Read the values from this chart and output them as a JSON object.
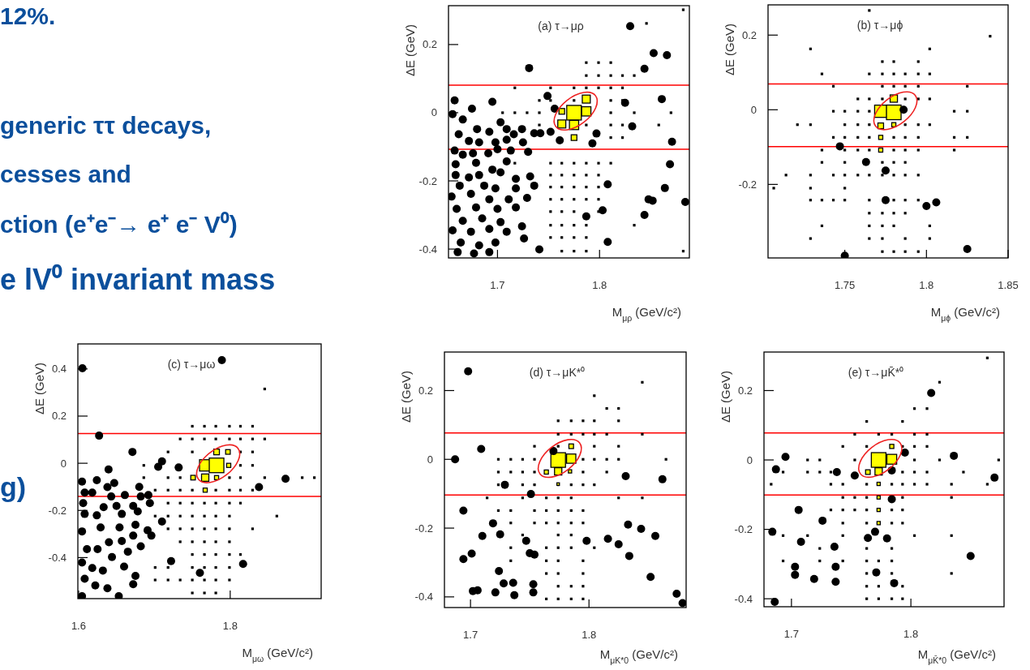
{
  "chart_data": [
    {
      "type": "other",
      "annotations": [
        "12%.",
        "generic ττ decays,",
        "cesses and",
        "ction (e⁺e⁻→ e⁺ e⁻ V⁰)",
        "e lV⁰ invariant mass",
        "g)"
      ]
    },
    {
      "type": "scatter",
      "title": "(a) τ→μρ",
      "xlabel": "M$_{μρ}$ (GeV/c²)",
      "ylabel": "ΔE (GeV)",
      "xlim": [
        1.652,
        1.888
      ],
      "ylim": [
        -0.426,
        0.314
      ],
      "xticks": [
        1.7,
        1.8
      ],
      "yticks": [
        -0.4,
        -0.2,
        0,
        0.2
      ],
      "ref_lines": [
        {
          "axis": "y",
          "value": 0.081,
          "color": "#ff0000"
        },
        {
          "axis": "y",
          "value": -0.107,
          "color": "#ff0000"
        }
      ],
      "series": [
        {
          "type": "scatter",
          "marker": "square",
          "color": "#000000",
          "x": [
            1.787,
            1.799,
            1.811,
            1.787,
            1.799,
            1.811,
            1.8225,
            1.834,
            1.717,
            1.752,
            1.775,
            1.787,
            1.799,
            1.811,
            1.8225,
            1.741,
            1.752,
            1.775,
            1.811,
            1.8225,
            1.705,
            1.717,
            1.729,
            1.741,
            1.811,
            1.834,
            1.87,
            1.741,
            1.787,
            1.811,
            1.8225,
            1.858,
            1.811,
            1.8225,
            1.717,
            1.752,
            1.763,
            1.775,
            1.787,
            1.799,
            1.811,
            1.752,
            1.763,
            1.775,
            1.787,
            1.799,
            1.752,
            1.763,
            1.775,
            1.787,
            1.799,
            1.752,
            1.763,
            1.775,
            1.787,
            1.799,
            1.752,
            1.763,
            1.775,
            1.799,
            1.752,
            1.763,
            1.775,
            1.787,
            1.834,
            1.752,
            1.763,
            1.775,
            1.787,
            1.763,
            1.775,
            1.787,
            1.882,
            1.882,
            1.846
          ],
          "values": [
            0.147,
            0.147,
            0.147,
            0.109,
            0.109,
            0.109,
            0.109,
            0.109,
            0.073,
            0.073,
            0.073,
            0.073,
            0.073,
            0.073,
            0.073,
            0.036,
            0.036,
            0.036,
            0.036,
            0.036,
            0,
            0,
            0,
            0,
            0,
            0,
            0,
            -0.036,
            -0.036,
            -0.036,
            -0.036,
            -0.036,
            -0.073,
            -0.073,
            -0.148,
            -0.148,
            -0.148,
            -0.148,
            -0.148,
            -0.148,
            -0.148,
            -0.183,
            -0.183,
            -0.183,
            -0.183,
            -0.183,
            -0.218,
            -0.218,
            -0.218,
            -0.218,
            -0.218,
            -0.254,
            -0.254,
            -0.254,
            -0.254,
            -0.254,
            -0.29,
            -0.29,
            -0.29,
            -0.29,
            -0.33,
            -0.33,
            -0.33,
            -0.33,
            -0.33,
            -0.366,
            -0.366,
            -0.366,
            -0.366,
            -0.406,
            -0.406,
            -0.406,
            -0.406,
            0.302,
            0.262
          ]
        },
        {
          "type": "bubble",
          "marker": "square",
          "color": "#ffff00",
          "x": [
            1.775,
            1.787,
            1.787,
            1.763,
            1.775,
            1.775,
            1.763
          ],
          "values": [
            0,
            0.04,
            0.004,
            -0.033,
            -0.036,
            -0.073,
            0.004
          ],
          "sizes": [
            1,
            0.3,
            0.4,
            0.3,
            0.4,
            0.15,
            0.15
          ]
        },
        {
          "type": "scatter",
          "marker": "circle",
          "color": "#000000",
          "x": [
            1.83,
            1.731,
            1.853,
            1.866,
            1.844,
            1.749,
            1.861,
            1.825,
            1.832,
            1.871,
            1.869,
            1.808,
            1.864,
            1.848,
            1.852,
            1.884,
            1.844,
            1.803,
            1.787,
            1.808,
            1.741,
            1.726,
            1.724,
            1.756,
            1.761,
            1.797,
            1.793,
            1.752,
            1.742,
            1.658,
            1.656,
            1.695,
            1.675,
            1.666,
            1.68,
            1.692,
            1.703,
            1.709,
            1.724,
            1.716,
            1.736,
            1.662,
            1.672,
            1.682,
            1.698,
            1.709,
            1.725,
            1.658,
            1.666,
            1.676,
            1.691,
            1.7,
            1.713,
            1.73,
            1.659,
            1.679,
            1.695,
            1.709,
            1.659,
            1.672,
            1.682,
            1.703,
            1.718,
            1.732,
            1.663,
            1.687,
            1.698,
            1.718,
            1.736,
            1.655,
            1.674,
            1.692,
            1.711,
            1.729,
            1.66,
            1.679,
            1.7,
            1.718,
            1.666,
            1.685,
            1.703,
            1.656,
            1.674,
            1.692,
            1.709,
            1.664,
            1.682,
            1.698,
            1.661,
            1.677,
            1.692
          ],
          "values": [
            0.254,
            0.131,
            0.175,
            0.169,
            0.129,
            0.049,
            0.04,
            0.029,
            -0.04,
            -0.085,
            -0.151,
            -0.21,
            -0.221,
            -0.254,
            -0.258,
            -0.262,
            -0.3,
            -0.286,
            -0.304,
            -0.379,
            -0.401,
            -0.369,
            -0.333,
            0.012,
            -0.081,
            -0.061,
            -0.09,
            -0.056,
            -0.06,
            0.036,
            -0.004,
            0.032,
            0.012,
            -0.02,
            -0.048,
            -0.056,
            -0.028,
            -0.048,
            -0.048,
            -0.063,
            -0.06,
            -0.063,
            -0.083,
            -0.087,
            -0.087,
            -0.079,
            -0.087,
            -0.111,
            -0.123,
            -0.119,
            -0.119,
            -0.107,
            -0.111,
            -0.115,
            -0.151,
            -0.147,
            -0.167,
            -0.143,
            -0.183,
            -0.19,
            -0.183,
            -0.175,
            -0.194,
            -0.187,
            -0.214,
            -0.214,
            -0.222,
            -0.222,
            -0.214,
            -0.246,
            -0.238,
            -0.254,
            -0.254,
            -0.25,
            -0.282,
            -0.278,
            -0.282,
            -0.278,
            -0.317,
            -0.31,
            -0.321,
            -0.345,
            -0.349,
            -0.341,
            -0.349,
            -0.381,
            -0.389,
            -0.381,
            -0.409,
            -0.413,
            -0.409
          ]
        }
      ]
    },
    {
      "type": "scatter",
      "title": "(b) τ→μϕ",
      "xlabel": "M$_{μϕ}$ (GeV/c²)",
      "ylabel": "ΔE (GeV)",
      "xlim": [
        1.703,
        1.85
      ],
      "ylim": [
        -0.397,
        0.281
      ],
      "xticks": [
        1.75,
        1.8,
        1.85
      ],
      "yticks": [
        -0.2,
        0,
        0.2
      ],
      "ref_lines": [
        {
          "axis": "y",
          "value": 0.069,
          "color": "#ff0000"
        },
        {
          "axis": "y",
          "value": -0.099,
          "color": "#ff0000"
        }
      ],
      "series": [
        {
          "type": "scatter",
          "marker": "square",
          "color": "#000000",
          "x": [
            1.729,
            1.802,
            1.773,
            1.78,
            1.795,
            1.736,
            1.765,
            1.773,
            1.78,
            1.787,
            1.795,
            1.802,
            1.743,
            1.773,
            1.78,
            1.787,
            1.795,
            1.825,
            1.758,
            1.765,
            1.773,
            1.787,
            1.795,
            1.802,
            1.743,
            1.75,
            1.758,
            1.765,
            1.817,
            1.825,
            1.721,
            1.729,
            1.75,
            1.758,
            1.765,
            1.787,
            1.795,
            1.802,
            1.743,
            1.75,
            1.758,
            1.765,
            1.78,
            1.787,
            1.795,
            1.817,
            1.825,
            1.736,
            1.75,
            1.758,
            1.765,
            1.78,
            1.787,
            1.795,
            1.817,
            1.736,
            1.75,
            1.773,
            1.78,
            1.787,
            1.714,
            1.729,
            1.743,
            1.75,
            1.758,
            1.765,
            1.773,
            1.78,
            1.787,
            1.795,
            1.729,
            1.75,
            1.729,
            1.736,
            1.743,
            1.75,
            1.765,
            1.78,
            1.787,
            1.795,
            1.765,
            1.773,
            1.78,
            1.787,
            1.736,
            1.765,
            1.773,
            1.78,
            1.802,
            1.729,
            1.765,
            1.773,
            1.787,
            1.802,
            1.773,
            1.78,
            1.787,
            1.795,
            1.765,
            1.839,
            1.7065
          ],
          "values": [
            0.163,
            0.163,
            0.129,
            0.129,
            0.129,
            0.096,
            0.096,
            0.096,
            0.096,
            0.096,
            0.096,
            0.096,
            0.063,
            0.063,
            0.063,
            0.063,
            0.063,
            0.063,
            0.029,
            0.029,
            0.029,
            0.029,
            0.029,
            0.029,
            -0.004,
            -0.004,
            -0.004,
            -0.004,
            -0.004,
            -0.004,
            -0.04,
            -0.04,
            -0.04,
            -0.04,
            -0.04,
            -0.04,
            -0.04,
            -0.04,
            -0.074,
            -0.074,
            -0.074,
            -0.074,
            -0.074,
            -0.074,
            -0.074,
            -0.074,
            -0.074,
            -0.108,
            -0.108,
            -0.108,
            -0.108,
            -0.108,
            -0.108,
            -0.108,
            -0.108,
            -0.141,
            -0.141,
            -0.141,
            -0.141,
            -0.141,
            -0.175,
            -0.175,
            -0.175,
            -0.175,
            -0.175,
            -0.175,
            -0.175,
            -0.175,
            -0.175,
            -0.175,
            -0.21,
            -0.21,
            -0.242,
            -0.242,
            -0.242,
            -0.242,
            -0.242,
            -0.242,
            -0.242,
            -0.242,
            -0.277,
            -0.277,
            -0.277,
            -0.277,
            -0.311,
            -0.311,
            -0.311,
            -0.311,
            -0.311,
            -0.345,
            -0.345,
            -0.345,
            -0.345,
            -0.345,
            -0.38,
            -0.38,
            -0.38,
            -0.38,
            0.266,
            0.197,
            -0.21
          ]
        },
        {
          "type": "bubble",
          "marker": "square",
          "color": "#ffff00",
          "x": [
            1.772,
            1.78,
            1.78,
            1.772,
            1.78,
            1.772,
            1.772
          ],
          "values": [
            -0.004,
            -0.007,
            0.03,
            -0.043,
            -0.04,
            -0.074,
            -0.108
          ],
          "sizes": [
            0.7,
            1,
            0.25,
            0.15,
            0.08,
            0.08,
            0.08
          ]
        },
        {
          "type": "scatter",
          "marker": "circle",
          "color": "#000000",
          "x": [
            1.747,
            1.763,
            1.775,
            1.775,
            1.8,
            1.806,
            1.825,
            1.786,
            1.75
          ],
          "values": [
            -0.098,
            -0.14,
            -0.163,
            -0.242,
            -0.258,
            -0.248,
            -0.373,
            0,
            -0.391
          ]
        }
      ]
    },
    {
      "type": "scatter",
      "title": "(c) τ→μω",
      "xlabel": "M$_{μω}$ (GeV/c²)",
      "ylabel": "ΔE (GeV)",
      "xlim": [
        1.599,
        1.92
      ],
      "ylim": [
        -0.574,
        0.506
      ],
      "xticks": [
        1.6,
        1.8
      ],
      "yticks": [
        -0.4,
        -0.2,
        0,
        0.2,
        0.4
      ],
      "ref_lines": [
        {
          "axis": "y",
          "value": 0.126,
          "color": "#ff0000"
        },
        {
          "axis": "y",
          "value": -0.141,
          "color": "#ff0000"
        }
      ],
      "series": [
        {
          "type": "scatter",
          "marker": "square",
          "color": "#000000",
          "x": [
            1.8455,
            1.75,
            1.766,
            1.781,
            1.799,
            1.8135,
            1.8295,
            1.734,
            1.75,
            1.766,
            1.781,
            1.799,
            1.8135,
            1.8295,
            1.8455,
            1.718,
            1.75,
            1.8135,
            1.8295,
            1.686,
            1.8135,
            1.8295,
            1.686,
            1.718,
            1.734,
            1.799,
            1.8135,
            1.8455,
            1.895,
            1.911,
            1.701,
            1.718,
            1.734,
            1.75,
            1.781,
            1.799,
            1.8135,
            1.8295,
            1.718,
            1.734,
            1.75,
            1.766,
            1.781,
            1.799,
            1.8135,
            1.701,
            1.718,
            1.734,
            1.75,
            1.766,
            1.781,
            1.799,
            1.8615,
            1.718,
            1.734,
            1.75,
            1.766,
            1.781,
            1.799,
            1.8295,
            1.734,
            1.75,
            1.766,
            1.781,
            1.799,
            1.75,
            1.766,
            1.781,
            1.799,
            1.8135,
            1.701,
            1.718,
            1.75,
            1.766,
            1.781,
            1.799,
            1.701,
            1.718,
            1.734,
            1.75,
            1.766,
            1.781,
            1.799,
            1.75,
            1.766,
            1.781
          ],
          "values": [
            0.315,
            0.157,
            0.157,
            0.157,
            0.157,
            0.157,
            0.157,
            0.103,
            0.103,
            0.103,
            0.103,
            0.103,
            0.103,
            0.103,
            0.103,
            0.048,
            0.048,
            0.048,
            0.048,
            -0.009,
            -0.009,
            -0.009,
            -0.061,
            -0.061,
            -0.061,
            -0.061,
            -0.061,
            -0.061,
            -0.061,
            -0.061,
            -0.114,
            -0.114,
            -0.114,
            -0.114,
            -0.114,
            -0.114,
            -0.114,
            -0.114,
            -0.169,
            -0.169,
            -0.169,
            -0.169,
            -0.169,
            -0.169,
            -0.169,
            -0.224,
            -0.224,
            -0.224,
            -0.224,
            -0.224,
            -0.224,
            -0.224,
            -0.224,
            -0.278,
            -0.278,
            -0.278,
            -0.278,
            -0.278,
            -0.278,
            -0.278,
            -0.333,
            -0.333,
            -0.333,
            -0.333,
            -0.333,
            -0.387,
            -0.387,
            -0.387,
            -0.387,
            -0.387,
            -0.442,
            -0.442,
            -0.442,
            -0.442,
            -0.442,
            -0.442,
            -0.495,
            -0.495,
            -0.495,
            -0.495,
            -0.495,
            -0.495,
            -0.495,
            -0.55,
            -0.55,
            -0.55
          ]
        },
        {
          "type": "bubble",
          "marker": "square",
          "color": "#ffff00",
          "x": [
            1.767,
            1.782,
            1.782,
            1.797,
            1.798,
            1.767,
            1.751,
            1.782,
            1.767
          ],
          "values": [
            -0.009,
            -0.009,
            0.048,
            0.048,
            -0.009,
            -0.061,
            -0.061,
            -0.061,
            -0.114
          ],
          "sizes": [
            0.6,
            1,
            0.15,
            0.1,
            0.08,
            0.25,
            0.1,
            0.08,
            0.08
          ]
        },
        {
          "type": "scatter",
          "marker": "circle",
          "color": "#000000",
          "x": [
            1.605,
            1.789,
            1.627,
            1.671,
            1.71,
            1.705,
            1.732,
            1.838,
            1.873,
            1.71,
            1.722,
            1.76,
            1.817,
            1.68,
            1.6045,
            1.624,
            1.6395,
            1.647,
            1.638,
            1.608,
            1.618,
            1.643,
            1.661,
            1.682,
            1.692,
            1.606,
            1.633,
            1.65,
            1.672,
            1.694,
            1.608,
            1.624,
            1.657,
            1.678,
            1.629,
            1.654,
            1.675,
            1.691,
            1.6045,
            1.64,
            1.657,
            1.672,
            1.696,
            1.611,
            1.625,
            1.665,
            1.682,
            1.644,
            1.6045,
            1.618,
            1.632,
            1.66,
            1.675,
            1.608,
            1.622,
            1.638,
            1.653,
            1.6045,
            1.672
          ],
          "values": [
            0.403,
            0.437,
            0.117,
            0.048,
            0.008,
            -0.015,
            -0.018,
            -0.101,
            -0.066,
            -0.247,
            -0.415,
            -0.465,
            -0.427,
            -0.1,
            -0.078,
            -0.072,
            -0.026,
            -0.084,
            -0.101,
            -0.124,
            -0.124,
            -0.141,
            -0.135,
            -0.141,
            -0.135,
            -0.169,
            -0.186,
            -0.181,
            -0.181,
            -0.169,
            -0.215,
            -0.221,
            -0.215,
            -0.204,
            -0.272,
            -0.272,
            -0.261,
            -0.284,
            -0.289,
            -0.335,
            -0.33,
            -0.307,
            -0.307,
            -0.364,
            -0.364,
            -0.375,
            -0.352,
            -0.398,
            -0.421,
            -0.444,
            -0.455,
            -0.438,
            -0.478,
            -0.49,
            -0.518,
            -0.53,
            -0.564,
            -0.564,
            -0.513
          ]
        }
      ]
    },
    {
      "type": "scatter",
      "title": "(d) τ→μK*⁰",
      "xlabel": "M$_{μK*0}$ (GeV/c²)",
      "ylabel": "ΔE (GeV)",
      "xlim": [
        1.678,
        1.882
      ],
      "ylim": [
        -0.431,
        0.312
      ],
      "xticks": [
        1.7,
        1.8
      ],
      "yticks": [
        -0.4,
        -0.2,
        0,
        0.2
      ],
      "ref_lines": [
        {
          "axis": "y",
          "value": 0.077,
          "color": "#ff0000"
        },
        {
          "axis": "y",
          "value": -0.104,
          "color": "#ff0000"
        }
      ],
      "series": [
        {
          "type": "scatter",
          "marker": "square",
          "color": "#000000",
          "x": [
            1.845,
            1.8045,
            1.815,
            1.825,
            1.774,
            1.785,
            1.795,
            1.8045,
            1.825,
            1.774,
            1.785,
            1.795,
            1.8045,
            1.815,
            1.845,
            1.754,
            1.774,
            1.8045,
            1.825,
            1.7235,
            1.734,
            1.744,
            1.754,
            1.795,
            1.8045,
            1.815,
            1.825,
            1.865,
            1.7235,
            1.734,
            1.744,
            1.754,
            1.795,
            1.815,
            1.7235,
            1.744,
            1.754,
            1.774,
            1.785,
            1.795,
            1.8045,
            1.714,
            1.744,
            1.764,
            1.774,
            1.785,
            1.825,
            1.845,
            1.7235,
            1.734,
            1.754,
            1.764,
            1.774,
            1.785,
            1.795,
            1.734,
            1.754,
            1.764,
            1.774,
            1.785,
            1.795,
            1.744,
            1.774,
            1.785,
            1.734,
            1.764,
            1.774,
            1.785,
            1.8045,
            1.734,
            1.764,
            1.774,
            1.795,
            1.764,
            1.774,
            1.795,
            1.774,
            1.785,
            1.795,
            1.764,
            1.774,
            1.785,
            1.795
          ],
          "values": [
            0.224,
            0.185,
            0.148,
            0.148,
            0.112,
            0.112,
            0.112,
            0.112,
            0.112,
            0.073,
            0.073,
            0.073,
            0.073,
            0.073,
            0.073,
            0.038,
            0.038,
            0.038,
            0.038,
            0,
            0,
            0,
            0,
            0,
            0,
            0,
            0,
            0,
            -0.037,
            -0.037,
            -0.037,
            -0.037,
            -0.037,
            -0.037,
            -0.074,
            -0.074,
            -0.074,
            -0.074,
            -0.074,
            -0.074,
            -0.074,
            -0.112,
            -0.112,
            -0.112,
            -0.112,
            -0.112,
            -0.112,
            -0.112,
            -0.149,
            -0.149,
            -0.149,
            -0.149,
            -0.149,
            -0.149,
            -0.149,
            -0.185,
            -0.185,
            -0.185,
            -0.185,
            -0.185,
            -0.185,
            -0.22,
            -0.22,
            -0.22,
            -0.257,
            -0.257,
            -0.257,
            -0.257,
            -0.257,
            -0.295,
            -0.295,
            -0.295,
            -0.295,
            -0.332,
            -0.332,
            -0.332,
            -0.369,
            -0.369,
            -0.369,
            -0.406,
            -0.406,
            -0.406,
            -0.406
          ]
        },
        {
          "type": "bubble",
          "marker": "square",
          "color": "#ffff00",
          "x": [
            1.774,
            1.785,
            1.774,
            1.785,
            1.764,
            1.784,
            1.774
          ],
          "values": [
            -0.002,
            0.002,
            -0.035,
            0.038,
            -0.037,
            -0.035,
            -0.072
          ],
          "sizes": [
            1,
            0.4,
            0.25,
            0.1,
            0.08,
            0.05,
            0.03
          ]
        },
        {
          "type": "scatter",
          "marker": "circle",
          "color": "#000000",
          "x": [
            1.698,
            1.687,
            1.709,
            1.729,
            1.77,
            1.751,
            1.694,
            1.719,
            1.71,
            1.725,
            1.747,
            1.694,
            1.701,
            1.75,
            1.754,
            1.724,
            1.728,
            1.736,
            1.702,
            1.706,
            1.721,
            1.737,
            1.753,
            1.753,
            1.798,
            1.816,
            1.825,
            1.833,
            1.834,
            1.844,
            1.856,
            1.852,
            1.831,
            1.862,
            1.874,
            1.879
          ],
          "values": [
            0.256,
            0,
            0.03,
            -0.074,
            0.024,
            -0.101,
            -0.149,
            -0.186,
            -0.223,
            -0.218,
            -0.237,
            -0.29,
            -0.274,
            -0.273,
            -0.277,
            -0.325,
            -0.361,
            -0.359,
            -0.383,
            -0.381,
            -0.387,
            -0.395,
            -0.363,
            -0.387,
            -0.237,
            -0.231,
            -0.247,
            -0.19,
            -0.281,
            -0.202,
            -0.223,
            -0.342,
            -0.049,
            -0.058,
            -0.391,
            -0.418
          ]
        }
      ]
    },
    {
      "type": "scatter",
      "title": "(e) τ→μK̄*⁰",
      "xlabel": "M$_{μK̄*0}$ (GeV/c²)",
      "ylabel": "ΔE (GeV)",
      "xlim": [
        1.677,
        1.878
      ],
      "ylim": [
        -0.423,
        0.311
      ],
      "xticks": [
        1.7,
        1.8
      ],
      "yticks": [
        -0.4,
        -0.2,
        0,
        0.2
      ],
      "ref_lines": [
        {
          "axis": "y",
          "value": 0.078,
          "color": "#ff0000"
        },
        {
          "axis": "y",
          "value": -0.101,
          "color": "#ff0000"
        }
      ],
      "series": [
        {
          "type": "scatter",
          "marker": "square",
          "color": "#000000",
          "x": [
            1.864,
            1.824,
            1.803,
            1.8135,
            1.763,
            1.793,
            1.753,
            1.773,
            1.784,
            1.803,
            1.8135,
            1.743,
            1.763,
            1.793,
            1.803,
            1.8135,
            1.7135,
            1.7237,
            1.753,
            1.803,
            1.824,
            1.8735,
            1.693,
            1.7135,
            1.7237,
            1.733,
            1.793,
            1.803,
            1.8135,
            1.844,
            1.683,
            1.733,
            1.743,
            1.763,
            1.784,
            1.793,
            1.803,
            1.8135,
            1.834,
            1.864,
            1.743,
            1.753,
            1.763,
            1.793,
            1.834,
            1.733,
            1.743,
            1.753,
            1.763,
            1.784,
            1.793,
            1.743,
            1.763,
            1.784,
            1.793,
            1.693,
            1.7135,
            1.743,
            1.803,
            1.834,
            1.7237,
            1.763,
            1.784,
            1.693,
            1.7237,
            1.743,
            1.763,
            1.773,
            1.784,
            1.763,
            1.784,
            1.834,
            1.763,
            1.773,
            1.793,
            1.763,
            1.773,
            1.784,
            1.793
          ],
          "values": [
            0.294,
            0.224,
            0.148,
            0.148,
            0.111,
            0.111,
            0.074,
            0.074,
            0.074,
            0.074,
            0.074,
            0.039,
            0.039,
            0.039,
            0.039,
            0.039,
            0,
            0,
            0,
            0,
            0,
            0,
            -0.035,
            -0.035,
            -0.035,
            -0.035,
            -0.035,
            -0.035,
            -0.035,
            -0.035,
            -0.07,
            -0.07,
            -0.07,
            -0.07,
            -0.07,
            -0.07,
            -0.07,
            -0.07,
            -0.07,
            -0.07,
            -0.108,
            -0.108,
            -0.108,
            -0.108,
            -0.108,
            -0.144,
            -0.144,
            -0.144,
            -0.144,
            -0.144,
            -0.144,
            -0.182,
            -0.182,
            -0.182,
            -0.182,
            -0.218,
            -0.218,
            -0.218,
            -0.218,
            -0.218,
            -0.255,
            -0.255,
            -0.255,
            -0.291,
            -0.291,
            -0.291,
            -0.291,
            -0.291,
            -0.291,
            -0.327,
            -0.327,
            -0.327,
            -0.364,
            -0.364,
            -0.364,
            -0.4,
            -0.4,
            -0.4,
            -0.4
          ]
        },
        {
          "type": "bubble",
          "marker": "square",
          "color": "#ffff00",
          "x": [
            1.773,
            1.784,
            1.773,
            1.764,
            1.784,
            1.773,
            1.773,
            1.773,
            1.773
          ],
          "values": [
            0,
            0.002,
            -0.033,
            -0.035,
            0.039,
            -0.069,
            -0.108,
            -0.144,
            -0.182
          ],
          "sizes": [
            1,
            0.45,
            0.25,
            0.1,
            0.08,
            0.05,
            0.05,
            0.05,
            0.05
          ]
        },
        {
          "type": "scatter",
          "marker": "circle",
          "color": "#000000",
          "x": [
            1.817,
            1.695,
            1.687,
            1.738,
            1.753,
            1.795,
            1.784,
            1.836,
            1.87,
            1.784,
            1.706,
            1.726,
            1.684,
            1.708,
            1.736,
            1.764,
            1.77,
            1.78,
            1.703,
            1.703,
            1.719,
            1.737,
            1.737,
            1.771,
            1.786,
            1.85,
            1.686
          ],
          "values": [
            0.193,
            0.009,
            -0.027,
            -0.035,
            -0.045,
            0.021,
            -0.03,
            0.012,
            -0.051,
            -0.113,
            -0.144,
            -0.175,
            -0.207,
            -0.236,
            -0.25,
            -0.225,
            -0.207,
            -0.226,
            -0.308,
            -0.331,
            -0.343,
            -0.308,
            -0.351,
            -0.324,
            -0.355,
            -0.277,
            -0.409
          ]
        }
      ]
    }
  ]
}
